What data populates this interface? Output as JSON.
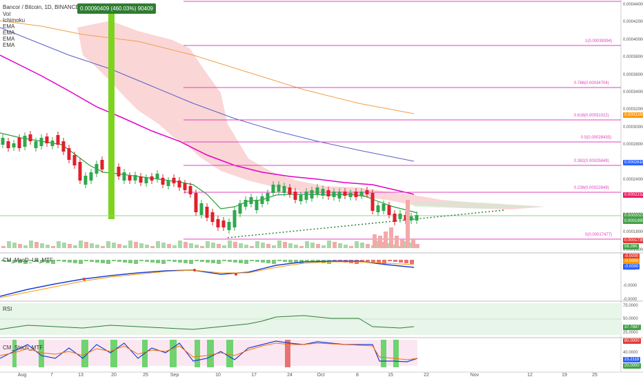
{
  "header": {
    "symbol": "Bancor / Bitcoin, 1D, BINANCE",
    "tooltip": "0.00090409 (460.03%) 90409",
    "indicators": [
      "Vol",
      "Ichimoku",
      "EMA",
      "EMA",
      "EMA",
      "EMA"
    ]
  },
  "colors": {
    "up": "#2fa84f",
    "down": "#e0202b",
    "ema_green": "#27a038",
    "ema_magenta": "#e100c8",
    "ema_blue": "#5a5ec8",
    "ema_orange": "#ef9f4a",
    "fib": "#e040c0",
    "cloud": "#f7b5b5",
    "highlight": "#7ed321"
  },
  "price_axis": {
    "ticks": [
      "0.00044000",
      "0.00042000",
      "0.00040000",
      "0.00038000",
      "0.00036000",
      "0.00034000",
      "0.00032000",
      "0.00030000",
      "0.00028000",
      "0.00026000",
      "0.00024000",
      "0.00022000",
      "0.00020000",
      "0.00018000",
      "0.00016000"
    ],
    "labels": [
      {
        "text": "0.00031604",
        "color": "#ff9800"
      },
      {
        "text": "0.00026181",
        "color": "#2962ff"
      },
      {
        "text": "0.00022323",
        "color": "#e91e63"
      },
      {
        "text": "0.00020272",
        "color": "#43a047"
      },
      {
        "text": "0.00019999",
        "color": "#43a047"
      },
      {
        "text": "0.00017359",
        "color": "#e53935"
      },
      {
        "text": "58.26K",
        "color": "#43a047"
      }
    ]
  },
  "fib_levels": [
    {
      "text": "1(0.00039394)"
    },
    {
      "text": "0.786(0.00034704)"
    },
    {
      "text": "0.618(0.00031022)"
    },
    {
      "text": "0.5(0.00028435)"
    },
    {
      "text": "0.382(0.00025849)"
    },
    {
      "text": "0.236(0.00022649)"
    },
    {
      "text": "0(0.00017477)"
    }
  ],
  "macd_pane": {
    "title": "CM_MacD_Ult_MTF",
    "ticks": [
      "0.0000",
      "-0.0000",
      "-0.0000"
    ],
    "labels": [
      {
        "text": "-0.0000",
        "color": "#e53935"
      },
      {
        "text": "-0.0000",
        "color": "#ff9800"
      },
      {
        "text": "-0.0000",
        "color": "#2962ff"
      }
    ]
  },
  "rsi_pane": {
    "title": "RSI",
    "ticks": [
      "75.0000",
      "50.0000",
      "25.0000"
    ],
    "label": {
      "text": "37.7887",
      "color": "#43a047"
    }
  },
  "stoch_pane": {
    "title": "CM_Stoch_MTF",
    "ticks": [
      "40.0000"
    ],
    "labels": [
      {
        "text": "80.0000",
        "color": "#e53935"
      },
      {
        "text": "23.2119",
        "color": "#2962ff"
      },
      {
        "text": "20.0000",
        "color": "#43a047"
      }
    ]
  },
  "time_axis": [
    "Aug",
    "7",
    "13",
    "20",
    "25",
    "Sep",
    "10",
    "17",
    "24",
    "Oct",
    "8",
    "15",
    "22",
    "Nov",
    "12",
    "19",
    "25"
  ]
}
